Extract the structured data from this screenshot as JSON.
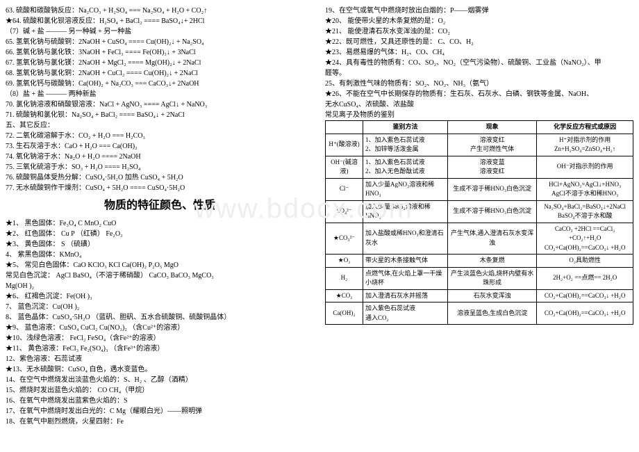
{
  "leftLines": [
    "63. 硫酸和碳酸钠反应：Na₂CO₃ + H₂SO₄ === Na₂SO₄ + H₂O + CO₂↑",
    "★64. 硫酸和氯化钡溶液反应：H₂SO₄ + BaCl₂ ==== BaSO₄↓+ 2HCl",
    "（7）碱 + 盐 ——— 另一种碱 + 另一种盐",
    "65. 氢氧化钠与硫酸铜：2NaOH + CuSO₄ ==== Cu(OH)₂↓ + Na₂SO₄",
    "66. 氢氧化钠与氯化铁：3NaOH + FeCl₃ ==== Fe(OH)₃↓ + 3NaCl",
    "67. 氢氧化钠与氯化镁：2NaOH + MgCl₂ ====  Mg(OH)₂↓ + 2NaCl",
    "68. 氢氧化钠与氯化铜：2NaOH + CuCl₂ ====  Cu(OH)₂↓ + 2NaCl",
    "69. 氢氧化钙与碳酸钠：Ca(OH)₂ + Na₂CO₃ === CaCO₃↓+ 2NaOH",
    "（8）盐 + 盐 ——— 两种新盐",
    "70. 氯化钠溶液和硝酸银溶液：NaCl + AgNO₃ ==== AgCl↓ + NaNO₃",
    "71. 硫酸钠和氯化钡：Na₂SO₄ + BaCl₂ ==== BaSO₄↓ + 2NaCl",
    "五、其它反应：",
    "72. 二氧化碳溶解于水：CO₂ + H₂O === H₂CO₃",
    "73. 生石灰溶于水：CaO + H₂O === Ca(OH)₂",
    "74. 氧化钠溶于水：Na₂O + H₂O ==== 2NaOH",
    "75. 三氧化硫溶于水：SO₃ + H₂O ==== H₂SO₄",
    "76. 硫酸铜晶体受热分解：CuSO₄·5H₂O 加热 CuSO₄ + 5H₂O",
    "77. 无水硫酸铜作干燥剂：CuSO₄ + 5H₂O ==== CuSO₄·5H₂O"
  ],
  "title": "物质的特征颜色、性质",
  "leftLines2": [
    "★1、 黑色固体：Fe₃O₄  C   MnO₂     CuO",
    "★2、 红色固体：  Cu   P （红磷）     Fe₂O₃",
    "★3、 黄色固体：  S  （硫磺）",
    "   4、 紫黑色固体：KMnO₄",
    "★5、 常见白色固体：CaO   KClO₃   KCl   Ca(OH)₂  P₂O₅  MgO",
    "       常见白色沉淀：    AgCl   BaSO₄（不溶于稀硝酸）    CaCO₃   BaCO₃   MgCO₃",
    "                         Mg(OH )₂",
    "★6、  红褐色沉淀：Fe(OH )₃",
    "   7、 蓝色沉淀：Cu(OH )₂",
    "   8、 蓝色晶体：CuSO₄·5H₂O   （蓝矾、胆矾、五水合硫酸铜、硫酸铜晶体）",
    "★9、 蓝色溶液：CuSO₄   CuCl₂   Cu(NO₃)₂  （含Cu²⁺的溶液）",
    "★10、浅绿色溶液：  FeCl₂    FeSO₄（含Fe²⁺的溶液）",
    "★11、 黄色溶液：FeCl₃  Fe₂(SO₄)₃ （含Fe³⁺的溶液）",
    "   12、紫色溶液：石蕊试液",
    "★13、无水硫酸铜：CuSO₄ 白色，遇水变蓝色。",
    "   14、在空气中燃烧发出淡蓝色火焰的：S、H₂ 、乙醇（酒精）",
    "   15、燃烧时发出蓝色火焰的：  CO  CH₄（甲烷）",
    "   16、在氧气中燃烧发出蓝紫色火焰的：S",
    "   17、在氧气中燃烧时发出白光的：C   Mg（耀眼白光）——照明弹",
    "   18、在氧气中剧烈燃烧，火星四射：Fe"
  ],
  "rightLines": [
    "   19、在空气或氧气中燃烧时放出白烟的：P——烟雾弹",
    "★20、  能使带火星的木条复燃的是：O₂",
    "★21、 能使澄清石灰水变浑浊的是：CO₂",
    "★22、既可燃性，又具还原性的是：  C、CO、H₂",
    "★23、易燃易爆的气体：H₂、CO、CH₄",
    "★24、具有毒性的物质有：CO、SO₂、NO₂（空气污染物）、硫酸铜、工业盐（NaNO₂）、甲",
    "醛等。",
    "    25、有刺激性气味的物质有：SO₂、NO₂、NH₃（氨气）",
    "  ★26、不能在空气中长期保存的物质有：生石灰、石灰水、白磷、钢铁等金属、NaOH、",
    "无水CuSO₄、浓硫酸、浓盐酸",
    "常见离子及物质的鉴别"
  ],
  "table": {
    "headers": [
      "",
      "鉴别方法",
      "现象",
      "化学反应方程式或原因"
    ],
    "rows": [
      [
        "H⁺(酸溶液)",
        "1、加入紫色石蕊试液\n2、加锌等活泼金属",
        "溶液变红\n产生可燃性气体",
        "H⁺对指示剂的作用\nZn+H₂SO₄=ZnSO₄+H₂↑"
      ],
      [
        "OH⁻(碱溶液)",
        "1、加入紫色石蕊试液\n2、加入无色酚酞试液",
        "溶液变蓝\n溶液变红",
        "OH⁻对指示剂的作用"
      ],
      [
        "Cl⁻",
        "加入少量AgNO₃溶液和稀HNO₃",
        "生成不溶于稀HNO₃白色沉淀",
        "HCl+AgNO₃=AgCl↓+HNO₃\nAgCl不溶于水和稀HNO₃"
      ],
      [
        "SO₄²⁻",
        "加入少量BaCl₂溶液和稀HNO₃",
        "生成不溶于稀HNO₃白色沉淀",
        "Na₂SO₄+BaCl₂=BaSO₄↓+2NaCl\nBaSO₄不溶于水和酸"
      ],
      [
        "★CO₃²⁻",
        "加入盐酸或稀HNO₃和澄清石灰水",
        "产生气体,通入澄清石灰水变浑浊",
        "CaCO₃ +2HCl ==CaCl₂ +CO₂↑+H₂O\nCO₂+Ca(OH)₂==CaCO₃↓ +H₂O"
      ],
      [
        "★O₂",
        "带火星的木条接触气体",
        "木条复燃",
        "O₂具助燃性"
      ],
      [
        "H₂",
        "点燃气体,在火焰上罩一干燥小烧杯",
        "产生淡蓝色火焰,烧杯内壁有水珠形成",
        "2H₂+O₂ ==点燃== 2H₂O"
      ],
      [
        "★CO₂",
        "加入澄清石灰水并摇荡",
        "石灰水变浑浊",
        "CO₂+Ca(OH)₂==CaCO₃↓ +H₂O"
      ],
      [
        "Ca(OH)₂",
        "加入紫色石蕊试液\n通入CO₂",
        "溶液呈蓝色,生成白色沉淀",
        "CO₂+Ca(OH)₂==CaCO₃↓ +H₂O"
      ]
    ]
  }
}
